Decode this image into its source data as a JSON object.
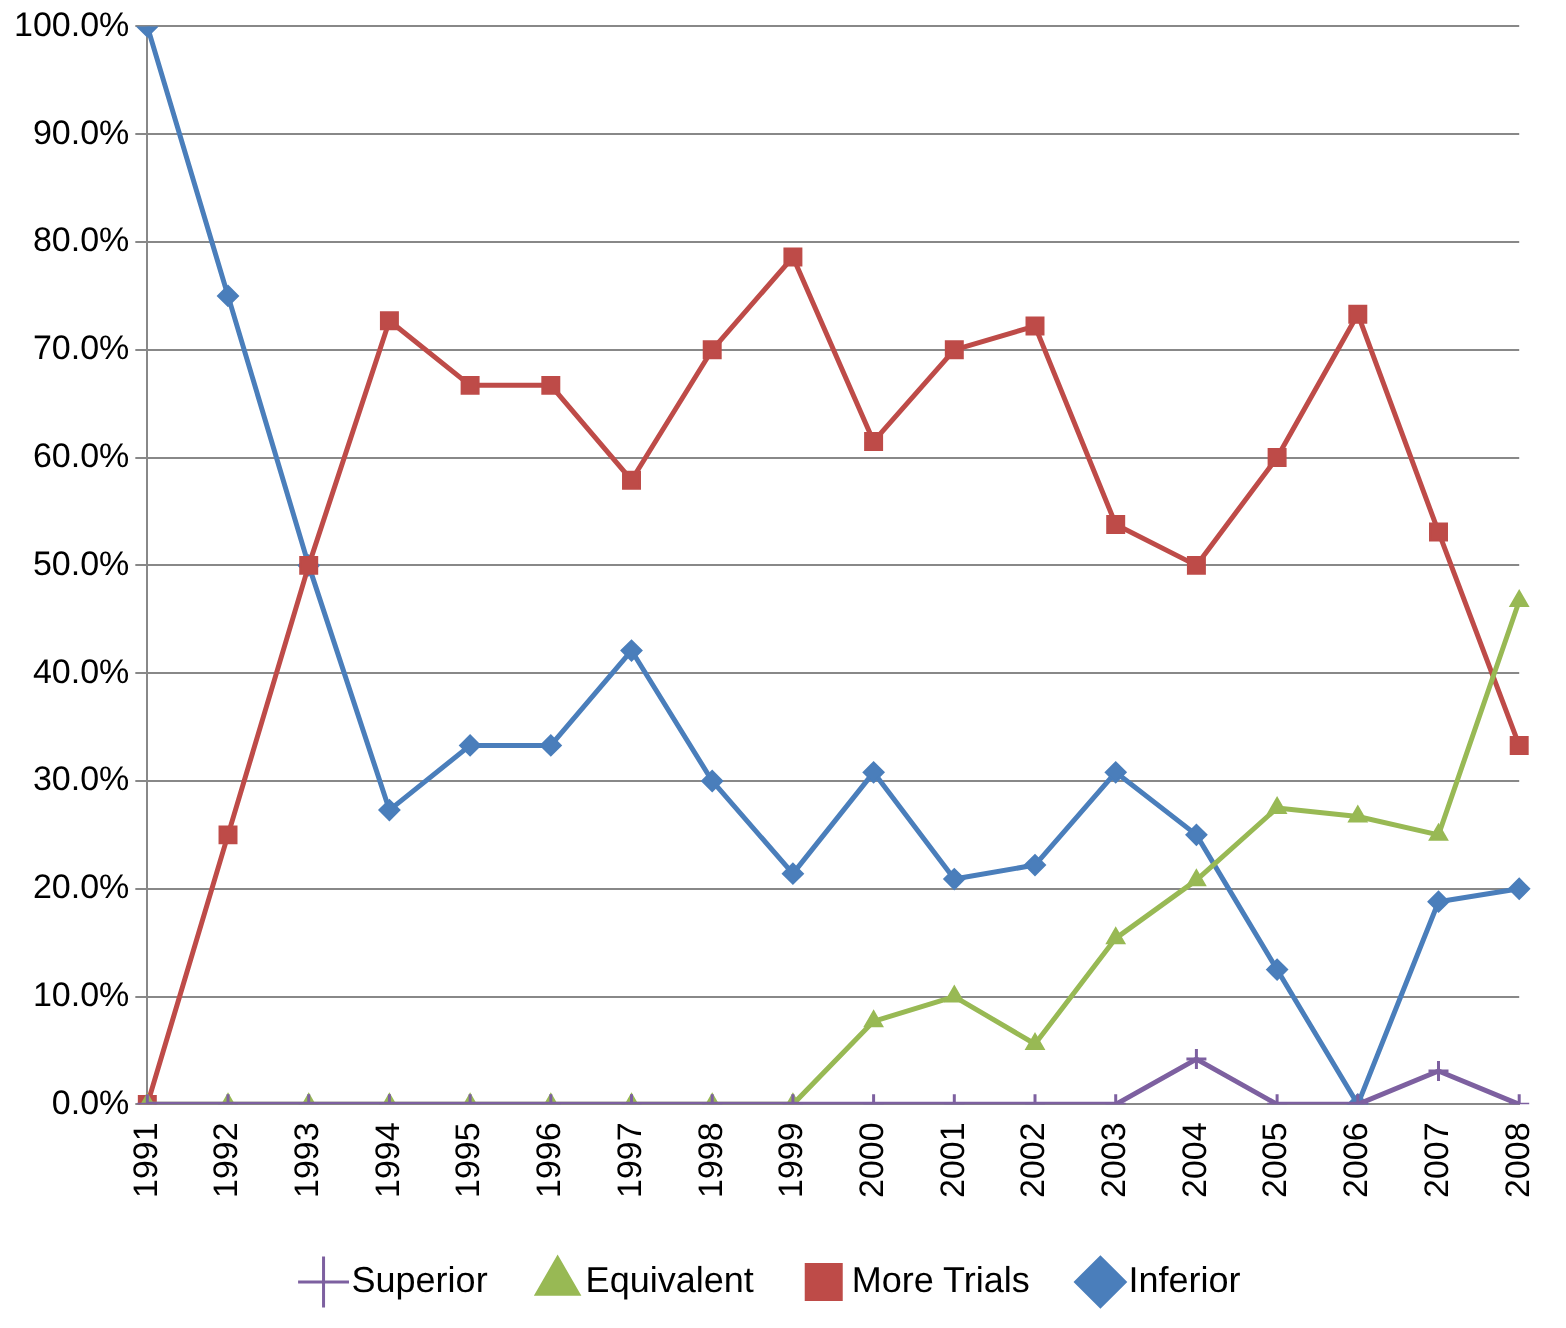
{
  "chart_data": {
    "type": "line",
    "categories": [
      "1991",
      "1992",
      "1993",
      "1994",
      "1995",
      "1996",
      "1997",
      "1998",
      "1999",
      "2000",
      "2001",
      "2002",
      "2003",
      "2004",
      "2005",
      "2006",
      "2007",
      "2008"
    ],
    "series": [
      {
        "name": "Inferior",
        "color": "#4a7ebb",
        "marker": "diamond",
        "values": [
          100,
          75,
          50,
          27.3,
          33.3,
          33.3,
          42.1,
          30,
          21.4,
          30.8,
          20.9,
          22.2,
          30.8,
          25,
          12.5,
          0,
          18.8,
          20
        ]
      },
      {
        "name": "More Trials",
        "color": "#be4b48",
        "marker": "square",
        "values": [
          0,
          25,
          50,
          72.7,
          66.7,
          66.7,
          57.9,
          70,
          78.6,
          61.5,
          70,
          72.2,
          53.8,
          50,
          60,
          73.3,
          53.1,
          33.3
        ]
      },
      {
        "name": "Equivalent",
        "color": "#98b954",
        "marker": "triangle",
        "values": [
          0,
          0,
          0,
          0,
          0,
          0,
          0,
          0,
          0,
          7.7,
          10,
          5.6,
          15.4,
          20.8,
          27.5,
          26.7,
          25,
          46.7
        ]
      },
      {
        "name": "Superior",
        "color": "#7d60a0",
        "marker": "cross",
        "values": [
          0,
          0,
          0,
          0,
          0,
          0,
          0,
          0,
          0,
          0,
          0,
          0,
          0,
          4.2,
          0,
          0,
          3.1,
          0
        ]
      }
    ],
    "ylim": [
      0,
      100
    ],
    "yticks": [
      {
        "value": 0,
        "label": "0.0%"
      },
      {
        "value": 10,
        "label": "10.0%"
      },
      {
        "value": 20,
        "label": "20.0%"
      },
      {
        "value": 30,
        "label": "30.0%"
      },
      {
        "value": 40,
        "label": "40.0%"
      },
      {
        "value": 50,
        "label": "50.0%"
      },
      {
        "value": 60,
        "label": "60.0%"
      },
      {
        "value": 70,
        "label": "70.0%"
      },
      {
        "value": 80,
        "label": "80.0%"
      },
      {
        "value": 90,
        "label": "90.0%"
      },
      {
        "value": 100,
        "label": "100.0%"
      }
    ],
    "grid": "y",
    "legend": "bottom",
    "line_style": "solid"
  }
}
